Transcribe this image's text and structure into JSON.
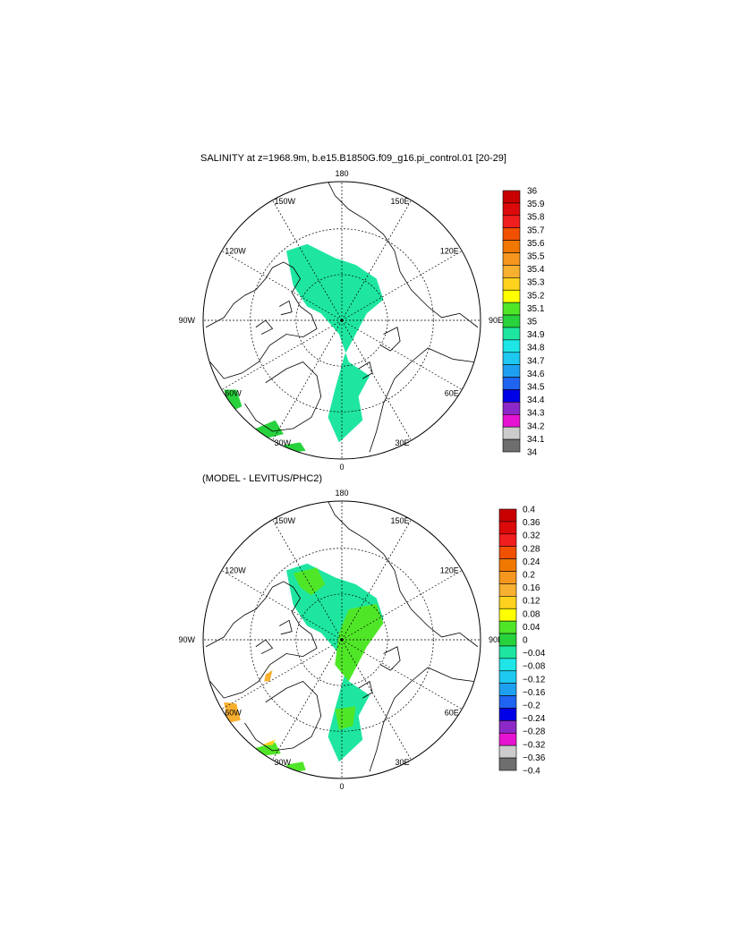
{
  "panels": [
    {
      "title": "SALINITY at z=1968.9m, b.e15.B1850G.f09_g16.pi_control.01 [20-29]",
      "lon_labels": [
        "180",
        "150E",
        "120E",
        "90E",
        "60E",
        "30E",
        "0",
        "30W",
        "60W",
        "90W",
        "120W",
        "150W"
      ],
      "colorbar": {
        "labels": [
          "36",
          "35.9",
          "35.8",
          "35.7",
          "35.6",
          "35.5",
          "35.4",
          "35.3",
          "35.2",
          "35.1",
          "35",
          "34.9",
          "34.8",
          "34.7",
          "34.6",
          "34.5",
          "34.4",
          "34.3",
          "34.2",
          "34.1",
          "34"
        ],
        "colors": [
          "#c80000",
          "#dc0a0a",
          "#f01e1e",
          "#f05000",
          "#f07800",
          "#f5961e",
          "#f8b030",
          "#ffd21e",
          "#ffff00",
          "#50e628",
          "#28d23c",
          "#1ee6a0",
          "#1ee6e6",
          "#1ec8f0",
          "#1ea0f0",
          "#1e64f0",
          "#0000e6",
          "#8c28c8",
          "#e614d2",
          "#cccccc",
          "#6e6e6e"
        ]
      }
    },
    {
      "title": "(MODEL - LEVITUS/PHC2)",
      "lon_labels": [
        "180",
        "150E",
        "120E",
        "90E",
        "60E",
        "30E",
        "0",
        "30W",
        "60W",
        "90W",
        "120W",
        "150W"
      ],
      "colorbar": {
        "labels": [
          "0.4",
          "0.36",
          "0.32",
          "0.28",
          "0.24",
          "0.2",
          "0.16",
          "0.12",
          "0.08",
          "0.04",
          "0",
          "−0.04",
          "−0.08",
          "−0.12",
          "−0.16",
          "−0.2",
          "−0.24",
          "−0.28",
          "−0.32",
          "−0.36",
          "−0.4"
        ],
        "colors": [
          "#c80000",
          "#dc0a0a",
          "#f01e1e",
          "#f05000",
          "#f07800",
          "#f5961e",
          "#f8b030",
          "#ffd21e",
          "#ffff00",
          "#50e628",
          "#28d23c",
          "#1ee6a0",
          "#1ee6e6",
          "#1ec8f0",
          "#1ea0f0",
          "#1e64f0",
          "#0000e6",
          "#8c28c8",
          "#e614d2",
          "#cccccc",
          "#6e6e6e"
        ]
      }
    }
  ]
}
